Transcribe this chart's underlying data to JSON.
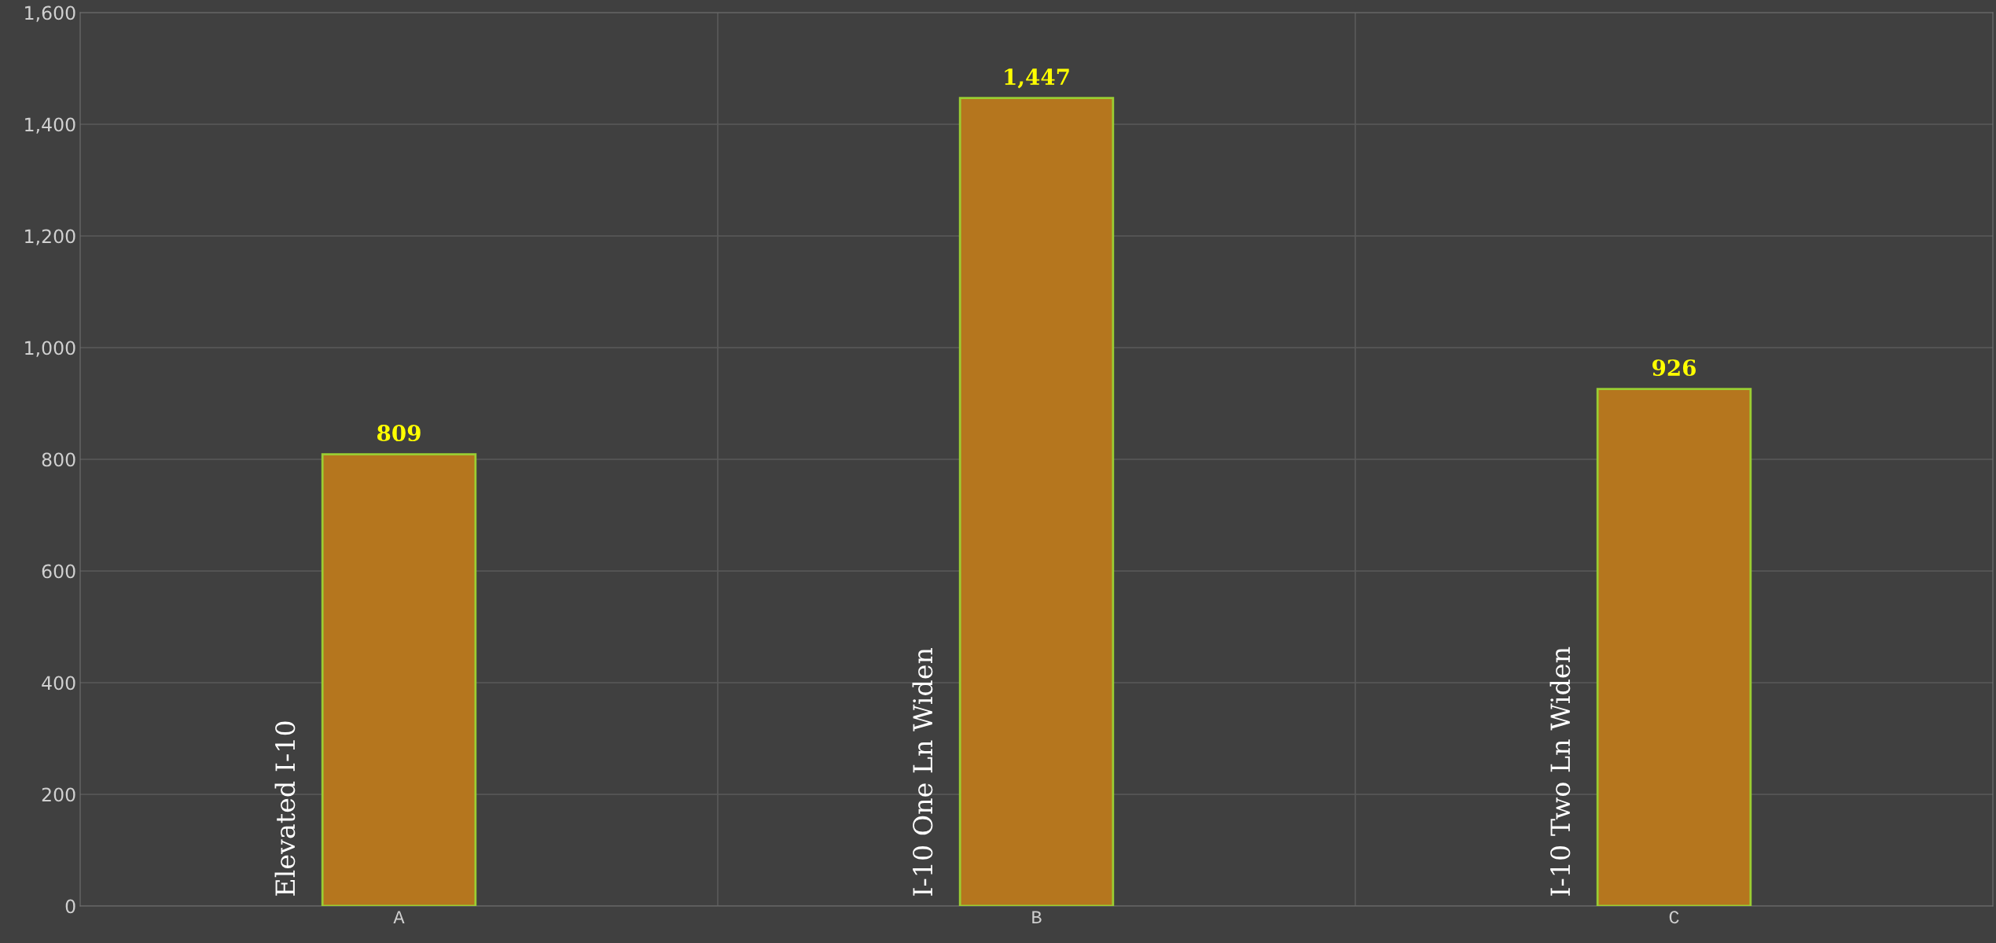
{
  "chart_data": {
    "type": "bar",
    "categories": [
      "A",
      "B",
      "C"
    ],
    "values": [
      809,
      1447,
      926
    ],
    "color": "#b5761e",
    "ylim": [
      0,
      1600
    ],
    "yticks": [
      0,
      200,
      400,
      600,
      800,
      {
        "value": 1000,
        "label": "1,000"
      },
      {
        "value": 1200,
        "label": "1,200"
      },
      {
        "value": 1400,
        "label": "1,400"
      },
      {
        "value": 1600,
        "label": "1,600"
      }
    ],
    "value_labels": [
      "809",
      "1,447",
      "926"
    ],
    "annotations": [
      "Elevated I-10",
      "I-10 One Ln Widen",
      "I-10 Two Ln Widen"
    ],
    "grid": true
  }
}
